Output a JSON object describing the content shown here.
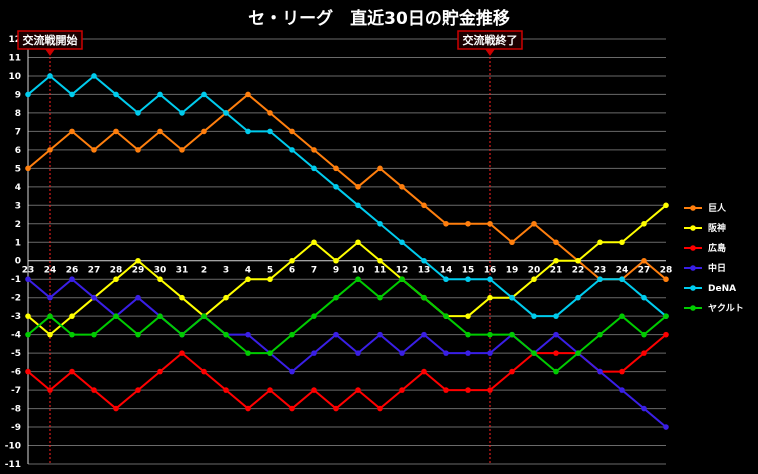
{
  "chart_data": {
    "type": "line",
    "title": "セ・リーグ　直近30日の貯金推移",
    "x_labels": [
      "23",
      "24",
      "26",
      "27",
      "28",
      "29",
      "30",
      "31",
      "2",
      "3",
      "4",
      "5",
      "6",
      "7",
      "9",
      "10",
      "11",
      "12",
      "13",
      "14",
      "15",
      "16",
      "19",
      "20",
      "21",
      "22",
      "23",
      "24",
      "27",
      "28"
    ],
    "ylim": [
      -11,
      12
    ],
    "yticks": [
      12,
      11,
      10,
      9,
      8,
      7,
      6,
      5,
      4,
      3,
      2,
      1,
      0,
      -1,
      -2,
      -3,
      -4,
      -5,
      -6,
      -7,
      -8,
      -9,
      -10,
      -11
    ],
    "grid": true,
    "legend_position": "right",
    "annotations": [
      {
        "text": "交流戦開始",
        "at_index": 1
      },
      {
        "text": "交流戦終了",
        "at_index": 21
      }
    ],
    "series": [
      {
        "name": "巨人",
        "color": "#ff7f0e",
        "values": [
          5,
          6,
          7,
          6,
          7,
          6,
          7,
          6,
          7,
          8,
          9,
          8,
          7,
          6,
          5,
          4,
          5,
          4,
          3,
          2,
          2,
          2,
          1,
          2,
          1,
          0,
          -1,
          -1,
          0,
          -1
        ]
      },
      {
        "name": "阪神",
        "color": "#ffff00",
        "values": [
          -3,
          -4,
          -3,
          -2,
          -1,
          0,
          -1,
          -2,
          -3,
          -2,
          -1,
          -1,
          0,
          1,
          0,
          1,
          0,
          -1,
          -2,
          -3,
          -3,
          -2,
          -2,
          -1,
          0,
          0,
          1,
          1,
          2,
          3
        ]
      },
      {
        "name": "広島",
        "color": "#ff0000",
        "values": [
          -6,
          -7,
          -6,
          -7,
          -8,
          -7,
          -6,
          -5,
          -6,
          -7,
          -8,
          -7,
          -8,
          -7,
          -8,
          -7,
          -8,
          -7,
          -6,
          -7,
          -7,
          -7,
          -6,
          -5,
          -5,
          -5,
          -6,
          -6,
          -5,
          -4
        ]
      },
      {
        "name": "中日",
        "color": "#3a1fe6",
        "values": [
          -1,
          -2,
          -1,
          -2,
          -3,
          -2,
          -3,
          -4,
          -3,
          -4,
          -4,
          -5,
          -6,
          -5,
          -4,
          -5,
          -4,
          -5,
          -4,
          -5,
          -5,
          -5,
          -4,
          -5,
          -4,
          -5,
          -6,
          -7,
          -8,
          -9
        ]
      },
      {
        "name": "DeNA",
        "color": "#00ccee",
        "values": [
          9,
          10,
          9,
          10,
          9,
          8,
          9,
          8,
          9,
          8,
          7,
          7,
          6,
          5,
          4,
          3,
          2,
          1,
          0,
          -1,
          -1,
          -1,
          -2,
          -3,
          -3,
          -2,
          -1,
          -1,
          -2,
          -3
        ]
      },
      {
        "name": "ヤクルト",
        "color": "#00cc00",
        "values": [
          -4,
          -3,
          -4,
          -4,
          -3,
          -4,
          -3,
          -4,
          -3,
          -4,
          -5,
          -5,
          -4,
          -3,
          -2,
          -1,
          -2,
          -1,
          -2,
          -3,
          -4,
          -4,
          -4,
          -5,
          -6,
          -5,
          -4,
          -3,
          -4,
          -3
        ]
      }
    ]
  }
}
